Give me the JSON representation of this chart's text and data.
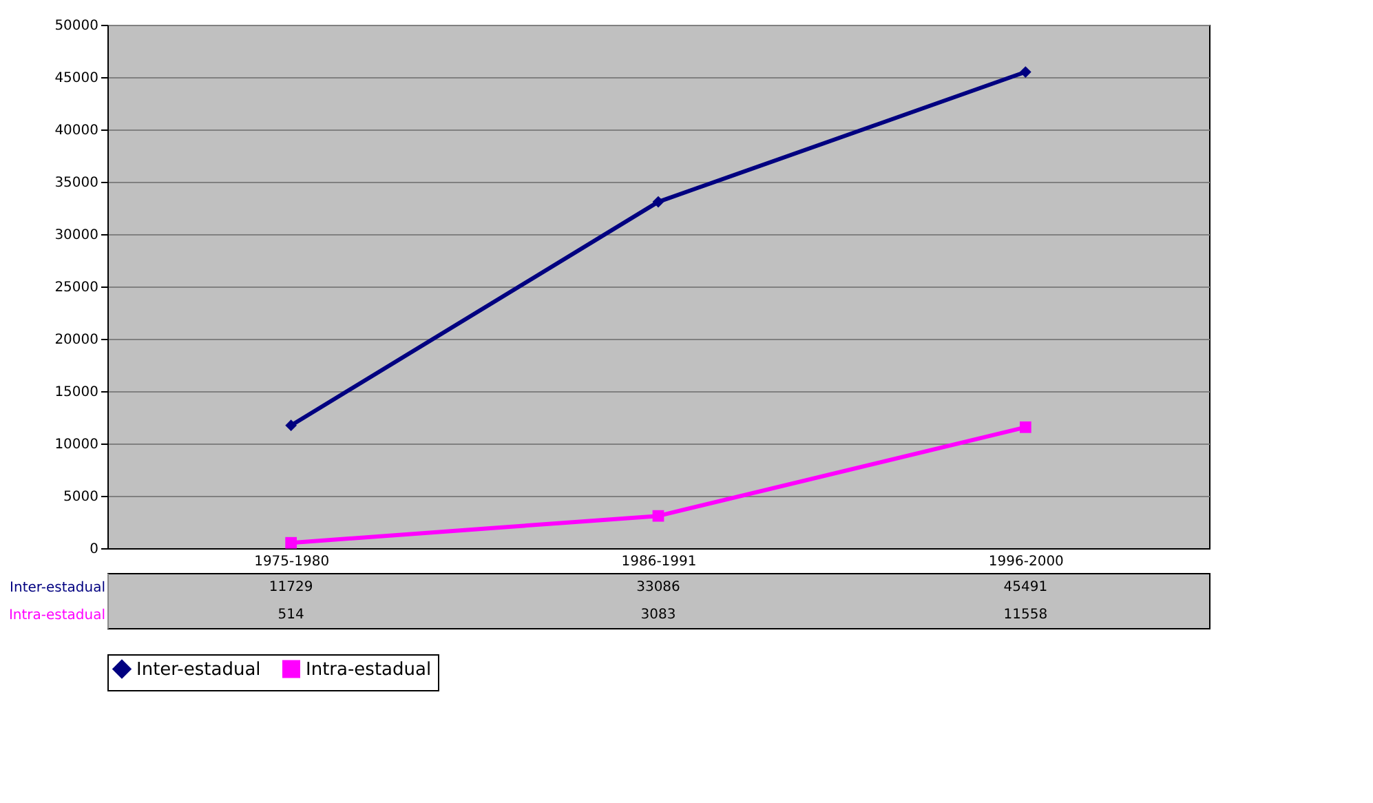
{
  "chart_data": {
    "type": "line",
    "categories": [
      "1975-1980",
      "1986-1991",
      "1996-2000"
    ],
    "series": [
      {
        "name": "Inter-estadual",
        "color": "#000080",
        "marker": "diamond",
        "values": [
          11729,
          33086,
          45491
        ]
      },
      {
        "name": "Intra-estadual",
        "color": "#ff00ff",
        "marker": "square",
        "values": [
          514,
          3083,
          11558
        ]
      }
    ],
    "ylim": [
      0,
      50000
    ],
    "yticks": [
      0,
      5000,
      10000,
      15000,
      20000,
      25000,
      30000,
      35000,
      40000,
      45000,
      50000
    ],
    "grid": "y",
    "legend": "bottom",
    "data_labels": true,
    "line_style": "solid"
  }
}
